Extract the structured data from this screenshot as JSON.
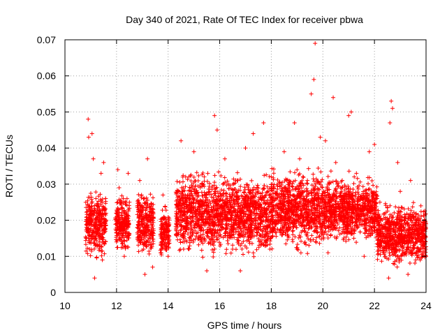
{
  "chart_data": {
    "type": "scatter",
    "title": "Day 340 of 2021, Rate Of TEC Index for receiver pbwa",
    "xlabel": "GPS time / hours",
    "ylabel": "ROTI / TECUs",
    "xlim": [
      10,
      24
    ],
    "ylim": [
      0,
      0.07
    ],
    "x_ticks": [
      "10",
      "12",
      "14",
      "16",
      "18",
      "20",
      "22",
      "24"
    ],
    "y_ticks": [
      "0",
      "0.01",
      "0.02",
      "0.03",
      "0.04",
      "0.05",
      "0.06",
      "0.07"
    ],
    "x_tick_values": [
      10,
      12,
      14,
      16,
      18,
      20,
      22,
      24
    ],
    "y_tick_values": [
      0,
      0.01,
      0.02,
      0.03,
      0.04,
      0.05,
      0.06,
      0.07
    ],
    "grid": true,
    "marker": "+",
    "color": "#ff0000",
    "series": [
      {
        "name": "",
        "points": [
          [
            10.85,
            0.018
          ],
          [
            10.9,
            0.048
          ],
          [
            10.92,
            0.043
          ],
          [
            10.95,
            0.012
          ],
          [
            11.0,
            0.022
          ],
          [
            11.05,
            0.044
          ],
          [
            11.1,
            0.037
          ],
          [
            11.15,
            0.004
          ],
          [
            11.2,
            0.026
          ],
          [
            11.3,
            0.016
          ],
          [
            11.4,
            0.033
          ],
          [
            11.45,
            0.009
          ],
          [
            11.5,
            0.036
          ],
          [
            11.6,
            0.02
          ],
          [
            12.0,
            0.014
          ],
          [
            12.05,
            0.034
          ],
          [
            12.1,
            0.029
          ],
          [
            12.2,
            0.022
          ],
          [
            12.3,
            0.01
          ],
          [
            12.4,
            0.018
          ],
          [
            12.45,
            0.033
          ],
          [
            12.5,
            0.025
          ],
          [
            12.9,
            0.031
          ],
          [
            13.0,
            0.021
          ],
          [
            13.05,
            0.012
          ],
          [
            13.1,
            0.005
          ],
          [
            13.15,
            0.025
          ],
          [
            13.2,
            0.037
          ],
          [
            13.3,
            0.016
          ],
          [
            13.4,
            0.007
          ],
          [
            13.8,
            0.027
          ],
          [
            13.9,
            0.017
          ],
          [
            14.0,
            0.01
          ],
          [
            14.35,
            0.02
          ],
          [
            14.5,
            0.042
          ],
          [
            14.6,
            0.012
          ],
          [
            14.8,
            0.032
          ],
          [
            15.0,
            0.039
          ],
          [
            15.2,
            0.022
          ],
          [
            15.4,
            0.015
          ],
          [
            15.5,
            0.006
          ],
          [
            15.7,
            0.029
          ],
          [
            15.8,
            0.049
          ],
          [
            15.9,
            0.045
          ],
          [
            16.1,
            0.018
          ],
          [
            16.2,
            0.037
          ],
          [
            16.3,
            0.026
          ],
          [
            16.5,
            0.012
          ],
          [
            16.7,
            0.031
          ],
          [
            16.8,
            0.006
          ],
          [
            17.0,
            0.04
          ],
          [
            17.2,
            0.016
          ],
          [
            17.3,
            0.044
          ],
          [
            17.5,
            0.024
          ],
          [
            17.7,
            0.047
          ],
          [
            17.8,
            0.013
          ],
          [
            18.0,
            0.032
          ],
          [
            18.2,
            0.019
          ],
          [
            18.5,
            0.039
          ],
          [
            18.7,
            0.028
          ],
          [
            18.9,
            0.047
          ],
          [
            19.0,
            0.012
          ],
          [
            19.1,
            0.037
          ],
          [
            19.2,
            0.022
          ],
          [
            19.4,
            0.031
          ],
          [
            19.55,
            0.055
          ],
          [
            19.65,
            0.059
          ],
          [
            19.7,
            0.069
          ],
          [
            19.8,
            0.026
          ],
          [
            19.9,
            0.043
          ],
          [
            20.0,
            0.016
          ],
          [
            20.1,
            0.042
          ],
          [
            20.2,
            0.011
          ],
          [
            20.4,
            0.054
          ],
          [
            20.5,
            0.036
          ],
          [
            20.6,
            0.021
          ],
          [
            20.8,
            0.027
          ],
          [
            21.0,
            0.049
          ],
          [
            21.1,
            0.05
          ],
          [
            21.2,
            0.015
          ],
          [
            21.3,
            0.033
          ],
          [
            21.5,
            0.026
          ],
          [
            21.6,
            0.01
          ],
          [
            21.8,
            0.039
          ],
          [
            21.9,
            0.018
          ],
          [
            22.0,
            0.041
          ],
          [
            22.1,
            0.026
          ],
          [
            22.2,
            0.016
          ],
          [
            22.4,
            0.012
          ],
          [
            22.55,
            0.004
          ],
          [
            22.6,
            0.047
          ],
          [
            22.65,
            0.053
          ],
          [
            22.7,
            0.051
          ],
          [
            22.8,
            0.016
          ],
          [
            22.9,
            0.036
          ],
          [
            23.0,
            0.028
          ],
          [
            23.2,
            0.011
          ],
          [
            23.3,
            0.005
          ],
          [
            23.4,
            0.031
          ],
          [
            23.5,
            0.021
          ],
          [
            23.6,
            0.009
          ],
          [
            23.7,
            0.016
          ],
          [
            23.8,
            0.024
          ],
          [
            23.9,
            0.014
          ],
          [
            24.0,
            0.01
          ]
        ],
        "bands": [
          {
            "x": [
              10.8,
              11.6
            ],
            "y": [
              0.008,
              0.03
            ]
          },
          {
            "x": [
              11.95,
              12.5
            ],
            "y": [
              0.01,
              0.028
            ]
          },
          {
            "x": [
              12.8,
              13.45
            ],
            "y": [
              0.007,
              0.03
            ]
          },
          {
            "x": [
              13.7,
              14.05
            ],
            "y": [
              0.008,
              0.025
            ]
          },
          {
            "x": [
              14.3,
              16.0
            ],
            "y": [
              0.008,
              0.036
            ]
          },
          {
            "x": [
              16.0,
              18.0
            ],
            "y": [
              0.008,
              0.035
            ]
          },
          {
            "x": [
              18.0,
              20.0
            ],
            "y": [
              0.01,
              0.036
            ]
          },
          {
            "x": [
              20.0,
              22.1
            ],
            "y": [
              0.012,
              0.034
            ]
          },
          {
            "x": [
              22.1,
              24.0
            ],
            "y": [
              0.006,
              0.026
            ]
          }
        ]
      }
    ]
  }
}
